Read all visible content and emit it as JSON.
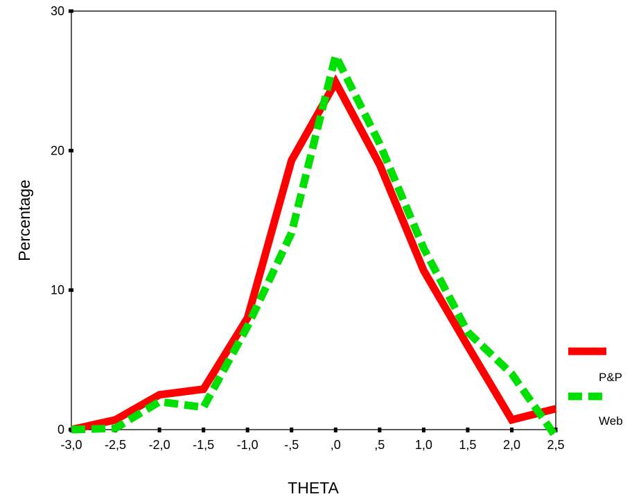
{
  "chart_data": {
    "type": "line",
    "title": "",
    "xlabel": "THETA",
    "ylabel": "Percentage",
    "categories": [
      "-3,0",
      "-2,5",
      "-2,0",
      "-1,5",
      "-1,0",
      "-,5",
      ",0",
      ",5",
      "1,0",
      "1,5",
      "2,0",
      "2,5"
    ],
    "x": [
      -3.0,
      -2.5,
      -2.0,
      -1.5,
      -1.0,
      -0.5,
      0.0,
      0.5,
      1.0,
      1.5,
      2.0,
      2.5
    ],
    "xlim": [
      -3.0,
      2.5
    ],
    "ylim": [
      0,
      30
    ],
    "yticks": [
      0,
      10,
      20,
      30
    ],
    "grid": false,
    "legend_position": "right",
    "series": [
      {
        "name": "P&P",
        "color": "#ff0000",
        "style": "solid",
        "values": [
          0.0,
          0.7,
          2.5,
          2.9,
          8.0,
          19.3,
          24.9,
          19.0,
          11.4,
          6.0,
          0.7,
          1.5
        ]
      },
      {
        "name": "Web",
        "color": "#00e000",
        "style": "dashed",
        "values": [
          0.0,
          0.1,
          2.0,
          1.6,
          7.4,
          14.1,
          26.8,
          20.5,
          13.0,
          7.0,
          4.0,
          -0.5
        ]
      }
    ]
  }
}
